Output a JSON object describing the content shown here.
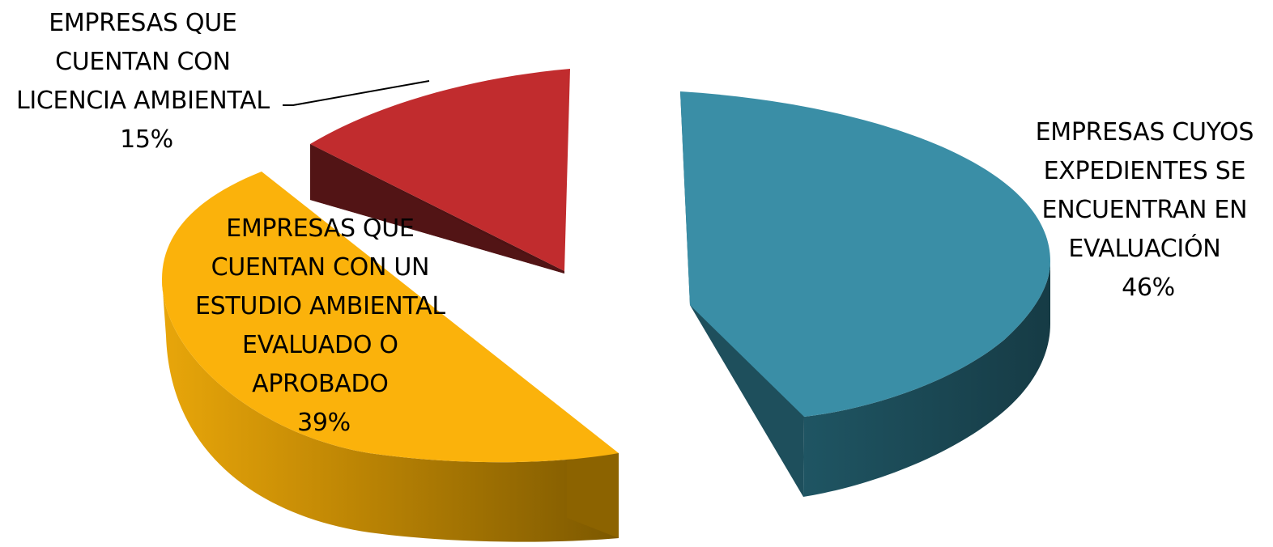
{
  "chart_data": {
    "type": "pie",
    "title": "",
    "style": "3d-exploded",
    "legend": "none",
    "slices": [
      {
        "label_lines": [
          "EMPRESAS CUYOS",
          "EXPEDIENTES SE",
          "ENCUENTRAN EN",
          "EVALUACIÓN"
        ],
        "percent_label": "46%",
        "value": 46,
        "color_top": "#3A8EA6",
        "color_side": "#1B4A57"
      },
      {
        "label_lines": [
          "EMPRESAS QUE",
          "CUENTAN CON UN",
          "ESTUDIO AMBIENTAL",
          "EVALUADO O",
          "APROBADO"
        ],
        "percent_label": "39%",
        "value": 39,
        "color_top": "#FBB20B",
        "color_side": "#C48A04"
      },
      {
        "label_lines": [
          "EMPRESAS QUE",
          "CUENTAN CON",
          "LICENCIA AMBIENTAL"
        ],
        "percent_label": "15%",
        "value": 15,
        "color_top": "#C12C2E",
        "color_side": "#4F1213"
      }
    ]
  }
}
